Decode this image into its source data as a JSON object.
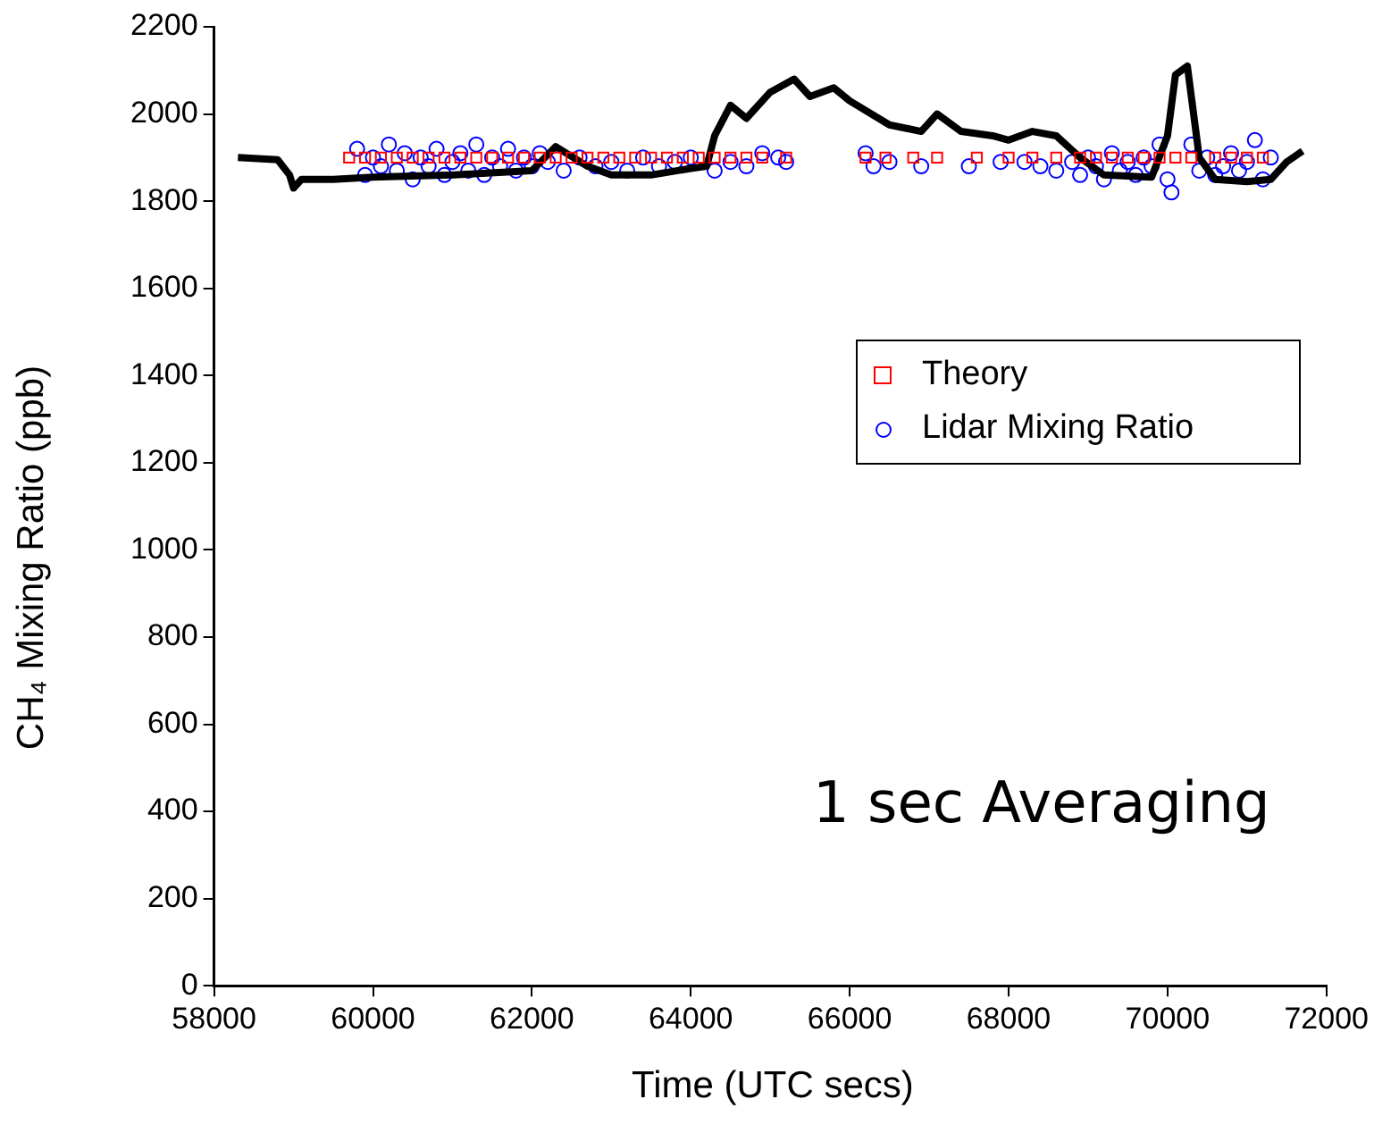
{
  "chart_data": {
    "type": "scatter",
    "xlabel": "Time (UTC secs)",
    "ylabel": "CH₄ Mixing Ratio (ppb)",
    "xlim": [
      58000,
      72000
    ],
    "xticks": [
      58000,
      60000,
      62000,
      64000,
      66000,
      68000,
      70000,
      72000
    ],
    "ylim": [
      0,
      2200
    ],
    "yticks": [
      0,
      200,
      400,
      600,
      800,
      1000,
      1200,
      1400,
      1600,
      1800,
      2000,
      2200
    ],
    "grid": false,
    "legend": "right",
    "annotations": [
      "1 sec Averaging"
    ],
    "series": [
      {
        "name": "Theory",
        "color": "#ff0000",
        "marker": "square",
        "x": [
          59700,
          59900,
          60100,
          60300,
          60500,
          60700,
          60900,
          61100,
          61300,
          61500,
          61700,
          61900,
          62100,
          62300,
          62500,
          62700,
          62900,
          63100,
          63300,
          63500,
          63700,
          63900,
          64100,
          64300,
          64500,
          64700,
          64900,
          65200,
          66200,
          66450,
          66800,
          67100,
          67600,
          68000,
          68300,
          68600,
          68900,
          69100,
          69300,
          69500,
          69700,
          69900,
          70100,
          70300,
          70600,
          70800,
          71000,
          71200
        ],
        "values": [
          1900,
          1900,
          1900,
          1900,
          1900,
          1900,
          1900,
          1900,
          1900,
          1900,
          1900,
          1900,
          1900,
          1900,
          1900,
          1900,
          1900,
          1900,
          1900,
          1900,
          1900,
          1900,
          1900,
          1900,
          1900,
          1900,
          1900,
          1900,
          1900,
          1900,
          1900,
          1900,
          1900,
          1900,
          1900,
          1900,
          1900,
          1900,
          1900,
          1900,
          1900,
          1900,
          1900,
          1900,
          1900,
          1900,
          1900,
          1900
        ]
      },
      {
        "type": "line",
        "color": "#000000",
        "x": [
          58300,
          58800,
          58950,
          59000,
          59100,
          59500,
          60000,
          61000,
          62000,
          62300,
          62700,
          63000,
          63500,
          64000,
          64200,
          64300,
          64500,
          64700,
          65000,
          65300,
          65500,
          65800,
          66000,
          66500,
          66900,
          67100,
          67400,
          67800,
          68000,
          68300,
          68600,
          68900,
          69200,
          69800,
          70000,
          70100,
          70250,
          70400,
          70600,
          71000,
          71300,
          71500,
          71700
        ],
        "values": [
          1900,
          1895,
          1860,
          1830,
          1850,
          1850,
          1855,
          1860,
          1870,
          1925,
          1880,
          1860,
          1860,
          1875,
          1880,
          1950,
          2020,
          1990,
          2050,
          2080,
          2040,
          2060,
          2030,
          1975,
          1960,
          2000,
          1960,
          1950,
          1940,
          1960,
          1950,
          1900,
          1860,
          1855,
          1950,
          2090,
          2110,
          1900,
          1850,
          1845,
          1850,
          1890,
          1915
        ]
      },
      {
        "name": "Lidar Mixing Ratio",
        "color": "#0000ff",
        "marker": "circle",
        "x": [
          59800,
          59900,
          60000,
          60100,
          60200,
          60300,
          60400,
          60500,
          60600,
          60700,
          60800,
          60900,
          61000,
          61100,
          61200,
          61300,
          61400,
          61500,
          61600,
          61700,
          61800,
          61900,
          62000,
          62100,
          62200,
          62400,
          62600,
          62800,
          63000,
          63200,
          63400,
          63600,
          63800,
          64000,
          64300,
          64500,
          64700,
          64900,
          65100,
          65200,
          66200,
          66300,
          66500,
          66900,
          67500,
          67900,
          68200,
          68400,
          68600,
          68800,
          68900,
          69000,
          69100,
          69200,
          69300,
          69400,
          69500,
          69600,
          69700,
          69800,
          69900,
          70000,
          70050,
          70300,
          70400,
          70500,
          70600,
          70700,
          70800,
          70900,
          71000,
          71100,
          71200,
          71300
        ],
        "values": [
          1920,
          1860,
          1900,
          1880,
          1930,
          1870,
          1910,
          1850,
          1900,
          1880,
          1920,
          1860,
          1890,
          1910,
          1870,
          1930,
          1860,
          1900,
          1880,
          1920,
          1870,
          1900,
          1880,
          1910,
          1890,
          1870,
          1900,
          1880,
          1890,
          1870,
          1900,
          1880,
          1890,
          1900,
          1870,
          1890,
          1880,
          1910,
          1900,
          1890,
          1910,
          1880,
          1890,
          1880,
          1880,
          1890,
          1890,
          1880,
          1870,
          1890,
          1860,
          1900,
          1880,
          1850,
          1910,
          1870,
          1890,
          1860,
          1900,
          1880,
          1930,
          1850,
          1820,
          1930,
          1870,
          1900,
          1860,
          1880,
          1910,
          1870,
          1890,
          1940,
          1850,
          1900
        ]
      }
    ]
  }
}
